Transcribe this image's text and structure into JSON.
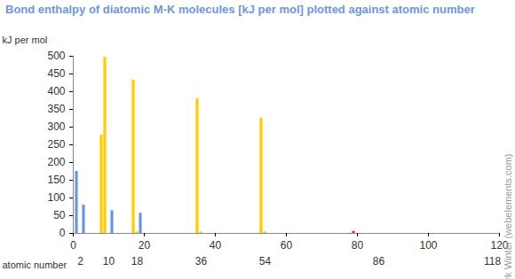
{
  "chart_data": {
    "type": "bar",
    "title": "Bond enthalpy of diatomic M-K molecules [kJ per mol] plotted against atomic number",
    "ylabel": "kJ per mol",
    "xlabel": "atomic number",
    "annotations": [
      "© Mark Winter (webelements.com)"
    ],
    "x": [
      1,
      3,
      8,
      9,
      11,
      17,
      18,
      19,
      35,
      36,
      53,
      54,
      79
    ],
    "values": [
      175,
      80,
      277,
      497,
      64,
      433,
      4,
      57,
      380,
      4,
      325,
      4,
      6
    ],
    "colors": [
      "#6b96e8",
      "#6b96e8",
      "#ffcc00",
      "#ffcc00",
      "#6b96e8",
      "#ffcc00",
      "#ffcc00",
      "#6b96e8",
      "#ffcc00",
      "#ffcc00",
      "#ffcc00",
      "#ffcc00",
      "#e8343a"
    ],
    "xlim": [
      0,
      120
    ],
    "xticks": [
      0,
      20,
      40,
      60,
      80,
      100,
      120
    ],
    "group_ticks": [
      2,
      10,
      18,
      36,
      54,
      86,
      118
    ],
    "ylim": [
      0,
      500
    ],
    "yticks": [
      0,
      50,
      100,
      150,
      200,
      250,
      300,
      350,
      400,
      450,
      500
    ],
    "grid": false
  }
}
